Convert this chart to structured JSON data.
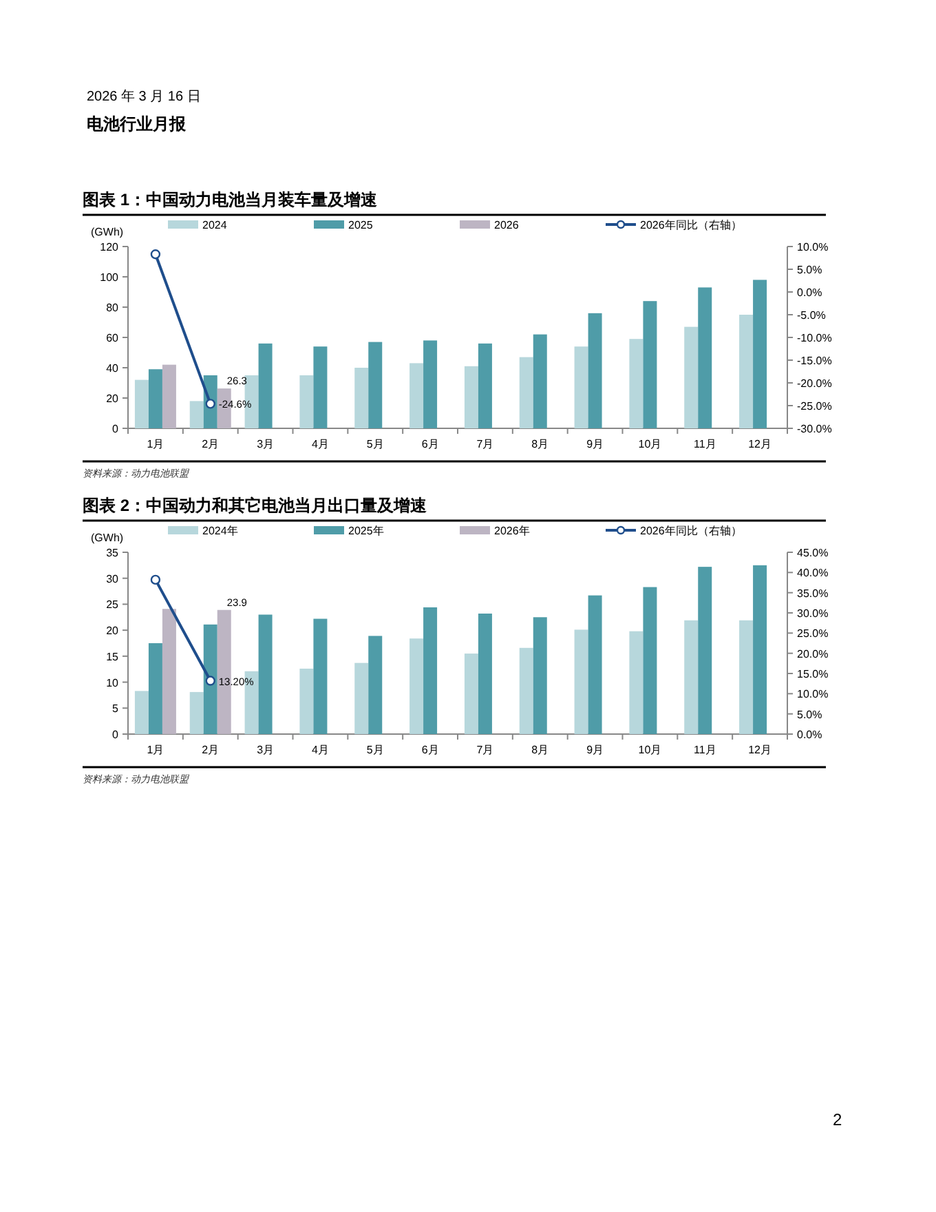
{
  "chart_data": [
    {
      "type": "bar",
      "title": "图表 1：中国动力电池当月装车量及增速",
      "ylabel": "(GWh)",
      "legend": "top",
      "annotations": [
        "资料来源：动力电池联盟",
        "2026 年 3 月 16 日",
        "电池行业月报"
      ],
      "categories": [
        "1月",
        "2月",
        "3月",
        "4月",
        "5月",
        "6月",
        "7月",
        "8月",
        "9月",
        "10月",
        "11月",
        "12月"
      ],
      "series": [
        {
          "name": "2024",
          "color": "#b7d7dc",
          "values": [
            32,
            18,
            35,
            35,
            40,
            43,
            41,
            47,
            54,
            59,
            67,
            75
          ]
        },
        {
          "name": "2025",
          "color": "#4f9ca8",
          "values": [
            39,
            35,
            56,
            54,
            57,
            58,
            56,
            62,
            76,
            84,
            93,
            98
          ]
        },
        {
          "name": "2026",
          "color": "#bdb5c3",
          "values": [
            42,
            26.3,
            null,
            null,
            null,
            null,
            null,
            null,
            null,
            null,
            null,
            null
          ],
          "value_labels": [
            null,
            "26.3",
            null,
            null,
            null,
            null,
            null,
            null,
            null,
            null,
            null,
            null
          ]
        },
        {
          "name": "2026年同比（右轴）",
          "type": "line",
          "axis": "y2",
          "marker": "circle",
          "line_style": "solid",
          "color": "#1f4e8c",
          "values": [
            8.3,
            -24.6,
            null,
            null,
            null,
            null,
            null,
            null,
            null,
            null,
            null,
            null
          ],
          "value_labels": [
            null,
            "-24.6%",
            null,
            null,
            null,
            null,
            null,
            null,
            null,
            null,
            null,
            null
          ]
        }
      ],
      "ylim": [
        0,
        120
      ],
      "yticks": [
        0,
        20,
        40,
        60,
        80,
        100,
        120
      ],
      "y2lim": [
        -30,
        10
      ],
      "y2ticks": [
        {
          "value": 10,
          "label": "10.0%"
        },
        {
          "value": 5,
          "label": "5.0%"
        },
        {
          "value": 0,
          "label": "0.0%"
        },
        {
          "value": -5,
          "label": "-5.0%"
        },
        {
          "value": -10,
          "label": "-10.0%"
        },
        {
          "value": -15,
          "label": "-15.0%"
        },
        {
          "value": -20,
          "label": "-20.0%"
        },
        {
          "value": -25,
          "label": "-25.0%"
        },
        {
          "value": -30,
          "label": "-30.0%"
        }
      ]
    },
    {
      "type": "bar",
      "title": "图表 2：中国动力和其它电池当月出口量及增速",
      "ylabel": "(GWh)",
      "legend": "top",
      "annotations": [
        "资料来源：动力电池联盟",
        "2"
      ],
      "categories": [
        "1月",
        "2月",
        "3月",
        "4月",
        "5月",
        "6月",
        "7月",
        "8月",
        "9月",
        "10月",
        "11月",
        "12月"
      ],
      "series": [
        {
          "name": "2024年",
          "color": "#b7d7dc",
          "values": [
            8.3,
            8.1,
            12.1,
            12.6,
            13.7,
            18.4,
            15.5,
            16.6,
            20.1,
            19.8,
            21.9,
            21.9
          ]
        },
        {
          "name": "2025年",
          "color": "#4f9ca8",
          "values": [
            17.5,
            21.1,
            23,
            22.2,
            18.9,
            24.4,
            23.2,
            22.5,
            26.7,
            28.3,
            32.2,
            32.5
          ]
        },
        {
          "name": "2026年",
          "color": "#bdb5c3",
          "values": [
            24.1,
            23.9,
            null,
            null,
            null,
            null,
            null,
            null,
            null,
            null,
            null,
            null
          ],
          "value_labels": [
            null,
            "23.9",
            null,
            null,
            null,
            null,
            null,
            null,
            null,
            null,
            null,
            null
          ]
        },
        {
          "name": "2026年同比（右轴）",
          "type": "line",
          "axis": "y2",
          "marker": "circle",
          "line_style": "solid",
          "color": "#1f4e8c",
          "values": [
            38.2,
            13.2,
            null,
            null,
            null,
            null,
            null,
            null,
            null,
            null,
            null,
            null
          ],
          "value_labels": [
            null,
            "13.20%",
            null,
            null,
            null,
            null,
            null,
            null,
            null,
            null,
            null,
            null
          ]
        }
      ],
      "ylim": [
        0,
        35
      ],
      "yticks": [
        0,
        5,
        10,
        15,
        20,
        25,
        30,
        35
      ],
      "y2lim": [
        0,
        45
      ],
      "y2ticks": [
        {
          "value": 0,
          "label": "0.0%"
        },
        {
          "value": 5,
          "label": "5.0%"
        },
        {
          "value": 10,
          "label": "10.0%"
        },
        {
          "value": 15,
          "label": "15.0%"
        },
        {
          "value": 20,
          "label": "20.0%"
        },
        {
          "value": 25,
          "label": "25.0%"
        },
        {
          "value": 30,
          "label": "30.0%"
        },
        {
          "value": 35,
          "label": "35.0%"
        },
        {
          "value": 40,
          "label": "40.0%"
        },
        {
          "value": 45,
          "label": "45.0%"
        }
      ]
    }
  ]
}
